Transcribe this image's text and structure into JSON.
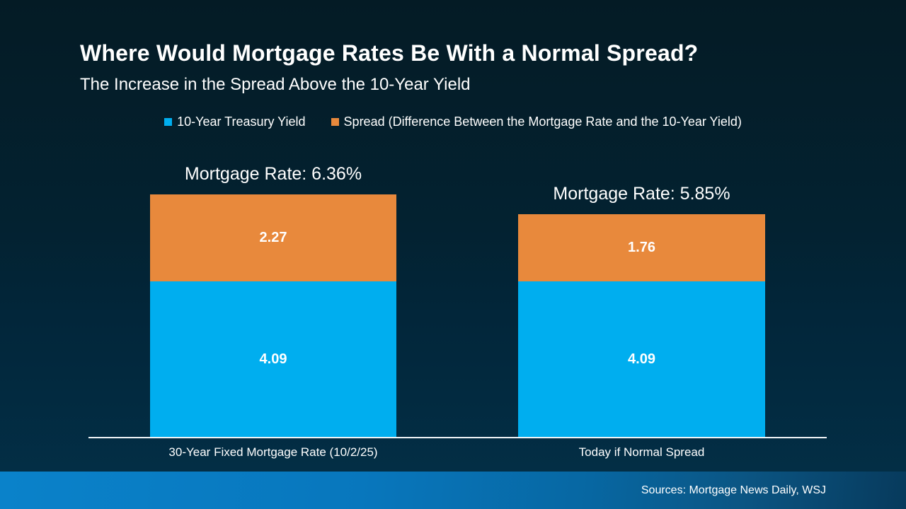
{
  "header": {
    "title": "Where Would Mortgage Rates Be With a Normal Spread?",
    "subtitle": "The Increase in the Spread Above the 10-Year Yield"
  },
  "chart_data": {
    "type": "bar",
    "stacked": true,
    "orientation": "vertical",
    "categories": [
      "30-Year Fixed Mortgage Rate (10/2/25)",
      "Today if Normal Spread"
    ],
    "series": [
      {
        "name": "10-Year Treasury Yield",
        "color": "#00AEEF",
        "values": [
          4.09,
          4.09
        ]
      },
      {
        "name": "Spread (Difference Between the Mortgage Rate and the 10-Year Yield)",
        "color": "#E8893C",
        "values": [
          2.27,
          1.76
        ]
      }
    ],
    "bar_total_labels": [
      "Mortgage Rate: 6.36%",
      "Mortgage Rate: 5.85%"
    ],
    "totals": [
      6.36,
      5.85
    ],
    "value_label_color": "#FFFFFF",
    "axis_line_color": "#F2F6F8",
    "legend_position": "top-center",
    "grid": false,
    "ylim": [
      0,
      6.5
    ]
  },
  "footer": {
    "source": "Sources: Mortgage News Daily, WSJ"
  },
  "colors": {
    "background_top": "#041B25",
    "background_bottom": "#033048",
    "footer_left": "#0A82CA",
    "footer_right": "#073A5C",
    "text": "#FFFFFF"
  }
}
